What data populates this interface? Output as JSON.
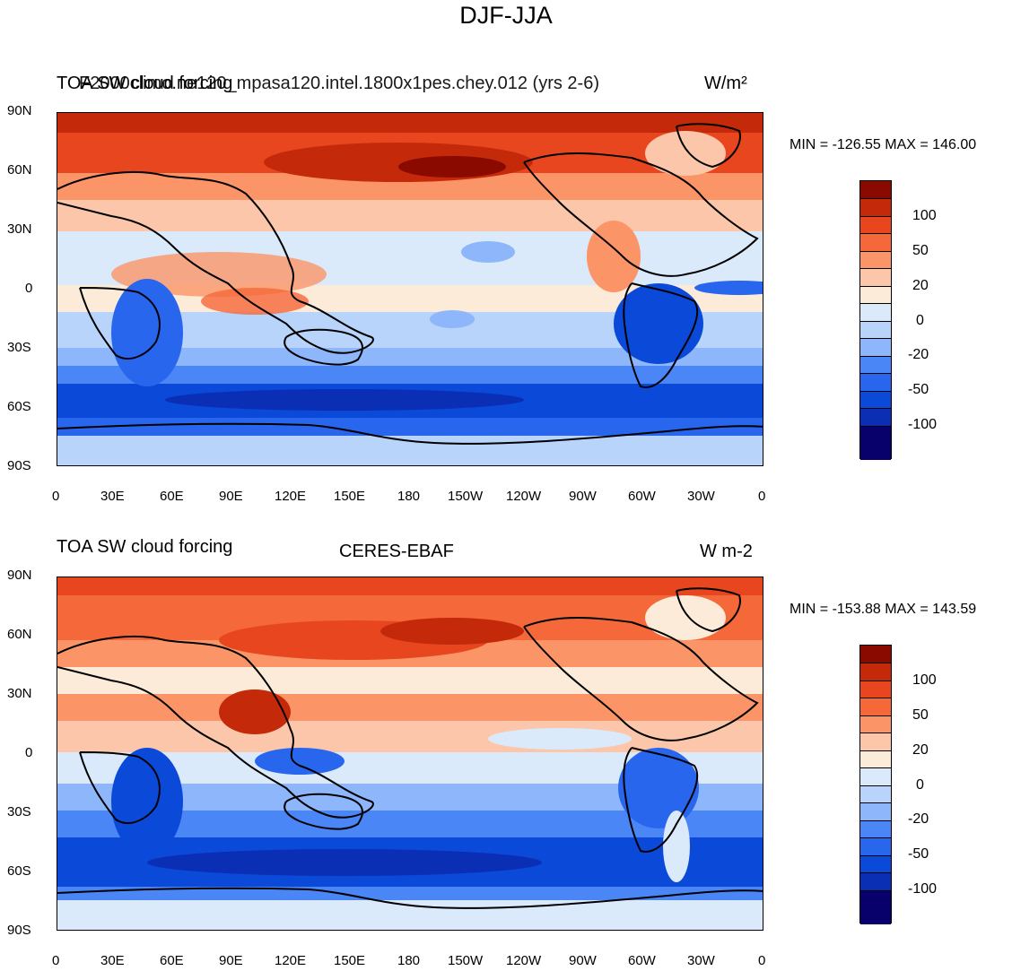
{
  "title": "DJF-JJA",
  "colors": {
    "levels": [
      "#08006b",
      "#0a2fb5",
      "#0b49d9",
      "#2866ee",
      "#4a86f6",
      "#8db6fb",
      "#b9d4fb",
      "#dbeafb",
      "#fcebd8",
      "#fcc6aa",
      "#fb9567",
      "#f5683a",
      "#e8461f",
      "#c42a0a",
      "#8b0a00"
    ],
    "background_ocean": "#dbeafb",
    "coastline": "#000000"
  },
  "x_ticks": [
    "0",
    "30E",
    "60E",
    "90E",
    "120E",
    "150E",
    "180",
    "150W",
    "120W",
    "90W",
    "60W",
    "30W",
    "0"
  ],
  "y_ticks": [
    "90N",
    "60N",
    "30N",
    "0",
    "30S",
    "60S",
    "90S"
  ],
  "colorbar_labels": [
    "100",
    "50",
    "20",
    "0",
    "-20",
    "-50",
    "-100"
  ],
  "panels": [
    {
      "left_label": "TOA SW cloud forcing",
      "center_label": "F2000climo.ne120_mpasa120.intel.1800x1pes.chey.012 (yrs 2-6)",
      "right_label": "W/m²",
      "stat_text": "MIN = -126.55 MAX = 146.00"
    },
    {
      "left_label": "TOA SW cloud forcing",
      "center_label": "CERES-EBAF",
      "right_label": "W m-2",
      "stat_text": "MIN = -153.88 MAX = 143.59"
    }
  ]
}
